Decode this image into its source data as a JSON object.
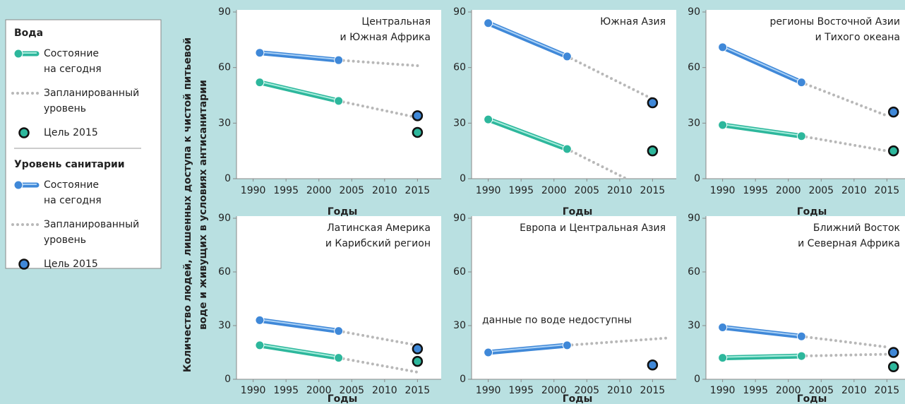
{
  "ylabel": [
    "Количество людей, лишенных доступа к чистой питьевой",
    "воде и живущих в условиях антисанитарии"
  ],
  "legend": {
    "groups": [
      {
        "title": "Вода",
        "entries": [
          {
            "label": [
              "Состояние",
              "на сегодня"
            ],
            "color": "#2db79c",
            "style": "solid"
          },
          {
            "label": [
              "Запланированный",
              "уровень"
            ],
            "color": "#b8b8b8",
            "style": "dotted"
          },
          {
            "label": [
              "Цель 2015"
            ],
            "color": "#2db79c",
            "style": "marker"
          }
        ]
      },
      {
        "title": "Уровень санитарии",
        "entries": [
          {
            "label": [
              "Состояние",
              "на сегодня"
            ],
            "color": "#3f88d8",
            "style": "solid"
          },
          {
            "label": [
              "Запланированный",
              "уровень"
            ],
            "color": "#b8b8b8",
            "style": "dotted"
          },
          {
            "label": [
              "Цель 2015"
            ],
            "color": "#3f88d8",
            "style": "marker"
          }
        ]
      }
    ]
  },
  "chart_data": [
    {
      "type": "line",
      "title": [
        "Центральная",
        "и Южная Африка"
      ],
      "xlabel": "Годы",
      "xlim": [
        1988,
        2017
      ],
      "xticks": [
        1990,
        1995,
        2000,
        2005,
        2010,
        2015
      ],
      "ylim": [
        0,
        90
      ],
      "yticks": [
        0,
        30,
        60,
        90
      ],
      "series": [
        {
          "color": "#b8b8b8",
          "style": "dotted",
          "x": [
            2003,
            2015
          ],
          "values": [
            64,
            61
          ]
        },
        {
          "color": "#b8b8b8",
          "style": "dotted",
          "x": [
            2003,
            2015
          ],
          "values": [
            42,
            33
          ]
        },
        {
          "color": "#3f88d8",
          "style": "solid",
          "x": [
            1991,
            2003
          ],
          "values": [
            68,
            64
          ]
        },
        {
          "color": "#2db79c",
          "style": "solid",
          "x": [
            1991,
            2003
          ],
          "values": [
            52,
            42
          ]
        },
        {
          "color": "#3f88d8",
          "style": "marker",
          "x": [
            2015
          ],
          "values": [
            34
          ]
        },
        {
          "color": "#2db79c",
          "style": "marker",
          "x": [
            2015
          ],
          "values": [
            25
          ]
        }
      ]
    },
    {
      "type": "line",
      "title": [
        "Южная Азия"
      ],
      "xlabel": "Годы",
      "xlim": [
        1988,
        2017
      ],
      "xticks": [
        1990,
        1995,
        2000,
        2005,
        2010,
        2015
      ],
      "ylim": [
        0,
        90
      ],
      "yticks": [
        0,
        30,
        60,
        90
      ],
      "series": [
        {
          "color": "#b8b8b8",
          "style": "dotted",
          "x": [
            2002,
            2015
          ],
          "values": [
            66,
            43
          ]
        },
        {
          "color": "#b8b8b8",
          "style": "dotted",
          "x": [
            2002,
            2011
          ],
          "values": [
            16,
            0
          ]
        },
        {
          "color": "#3f88d8",
          "style": "solid",
          "x": [
            1990,
            2002
          ],
          "values": [
            84,
            66
          ]
        },
        {
          "color": "#2db79c",
          "style": "solid",
          "x": [
            1990,
            2002
          ],
          "values": [
            32,
            16
          ]
        },
        {
          "color": "#3f88d8",
          "style": "marker",
          "x": [
            2015
          ],
          "values": [
            41
          ]
        },
        {
          "color": "#2db79c",
          "style": "marker",
          "x": [
            2015
          ],
          "values": [
            15
          ]
        }
      ]
    },
    {
      "type": "line",
      "title": [
        "регионы Восточной Азии",
        "и Тихого океана"
      ],
      "xlabel": "Годы",
      "xlim": [
        1988,
        2017
      ],
      "xticks": [
        1990,
        1995,
        2000,
        2005,
        2010,
        2015
      ],
      "ylim": [
        0,
        90
      ],
      "yticks": [
        0,
        30,
        60,
        90
      ],
      "series": [
        {
          "color": "#b8b8b8",
          "style": "dotted",
          "x": [
            2002,
            2015
          ],
          "values": [
            52,
            34
          ]
        },
        {
          "color": "#b8b8b8",
          "style": "dotted",
          "x": [
            2002,
            2015
          ],
          "values": [
            23,
            15
          ]
        },
        {
          "color": "#3f88d8",
          "style": "solid",
          "x": [
            1990,
            2002
          ],
          "values": [
            71,
            52
          ]
        },
        {
          "color": "#2db79c",
          "style": "solid",
          "x": [
            1990,
            2002
          ],
          "values": [
            29,
            23
          ]
        },
        {
          "color": "#3f88d8",
          "style": "marker",
          "x": [
            2016
          ],
          "values": [
            36
          ]
        },
        {
          "color": "#2db79c",
          "style": "marker",
          "x": [
            2016
          ],
          "values": [
            15
          ]
        }
      ]
    },
    {
      "type": "line",
      "title": [
        "Латинская Америка",
        "и Карибский регион"
      ],
      "xlabel": "Годы",
      "xlim": [
        1988,
        2017
      ],
      "xticks": [
        1990,
        1995,
        2000,
        2005,
        2010,
        2015
      ],
      "ylim": [
        0,
        90
      ],
      "yticks": [
        0,
        30,
        60,
        90
      ],
      "series": [
        {
          "color": "#b8b8b8",
          "style": "dotted",
          "x": [
            2003,
            2015
          ],
          "values": [
            27,
            19
          ]
        },
        {
          "color": "#b8b8b8",
          "style": "dotted",
          "x": [
            2003,
            2015
          ],
          "values": [
            12,
            4
          ]
        },
        {
          "color": "#3f88d8",
          "style": "solid",
          "x": [
            1991,
            2003
          ],
          "values": [
            33,
            27
          ]
        },
        {
          "color": "#2db79c",
          "style": "solid",
          "x": [
            1991,
            2003
          ],
          "values": [
            19,
            12
          ]
        },
        {
          "color": "#3f88d8",
          "style": "marker",
          "x": [
            2015
          ],
          "values": [
            17
          ]
        },
        {
          "color": "#2db79c",
          "style": "marker",
          "x": [
            2015
          ],
          "values": [
            10
          ]
        }
      ]
    },
    {
      "type": "line",
      "title": [
        "Европа и Центральная Азия"
      ],
      "annotation": "данные по воде недоступны",
      "xlabel": "Годы",
      "xlim": [
        1988,
        2017
      ],
      "xticks": [
        1990,
        1995,
        2000,
        2005,
        2010,
        2015
      ],
      "ylim": [
        0,
        90
      ],
      "yticks": [
        0,
        30,
        60,
        90
      ],
      "series": [
        {
          "color": "#b8b8b8",
          "style": "dotted",
          "x": [
            2002,
            2017
          ],
          "values": [
            19,
            23
          ]
        },
        {
          "color": "#3f88d8",
          "style": "solid",
          "x": [
            1990,
            2002
          ],
          "values": [
            15,
            19
          ]
        },
        {
          "color": "#3f88d8",
          "style": "marker",
          "x": [
            2015
          ],
          "values": [
            8
          ]
        }
      ]
    },
    {
      "type": "line",
      "title": [
        "Ближний Восток",
        "и Северная Африка"
      ],
      "xlabel": "Годы",
      "xlim": [
        1988,
        2017
      ],
      "xticks": [
        1990,
        1995,
        2000,
        2005,
        2010,
        2015
      ],
      "ylim": [
        0,
        90
      ],
      "yticks": [
        0,
        30,
        60,
        90
      ],
      "series": [
        {
          "color": "#b8b8b8",
          "style": "dotted",
          "x": [
            2002,
            2015
          ],
          "values": [
            24,
            18
          ]
        },
        {
          "color": "#b8b8b8",
          "style": "dotted",
          "x": [
            2002,
            2015
          ],
          "values": [
            13,
            14
          ]
        },
        {
          "color": "#3f88d8",
          "style": "solid",
          "x": [
            1990,
            2002
          ],
          "values": [
            29,
            24
          ]
        },
        {
          "color": "#2db79c",
          "style": "solid",
          "x": [
            1990,
            2002
          ],
          "values": [
            12,
            13
          ]
        },
        {
          "color": "#3f88d8",
          "style": "marker",
          "x": [
            2016
          ],
          "values": [
            15
          ]
        },
        {
          "color": "#2db79c",
          "style": "marker",
          "x": [
            2016
          ],
          "values": [
            7
          ]
        }
      ]
    }
  ]
}
